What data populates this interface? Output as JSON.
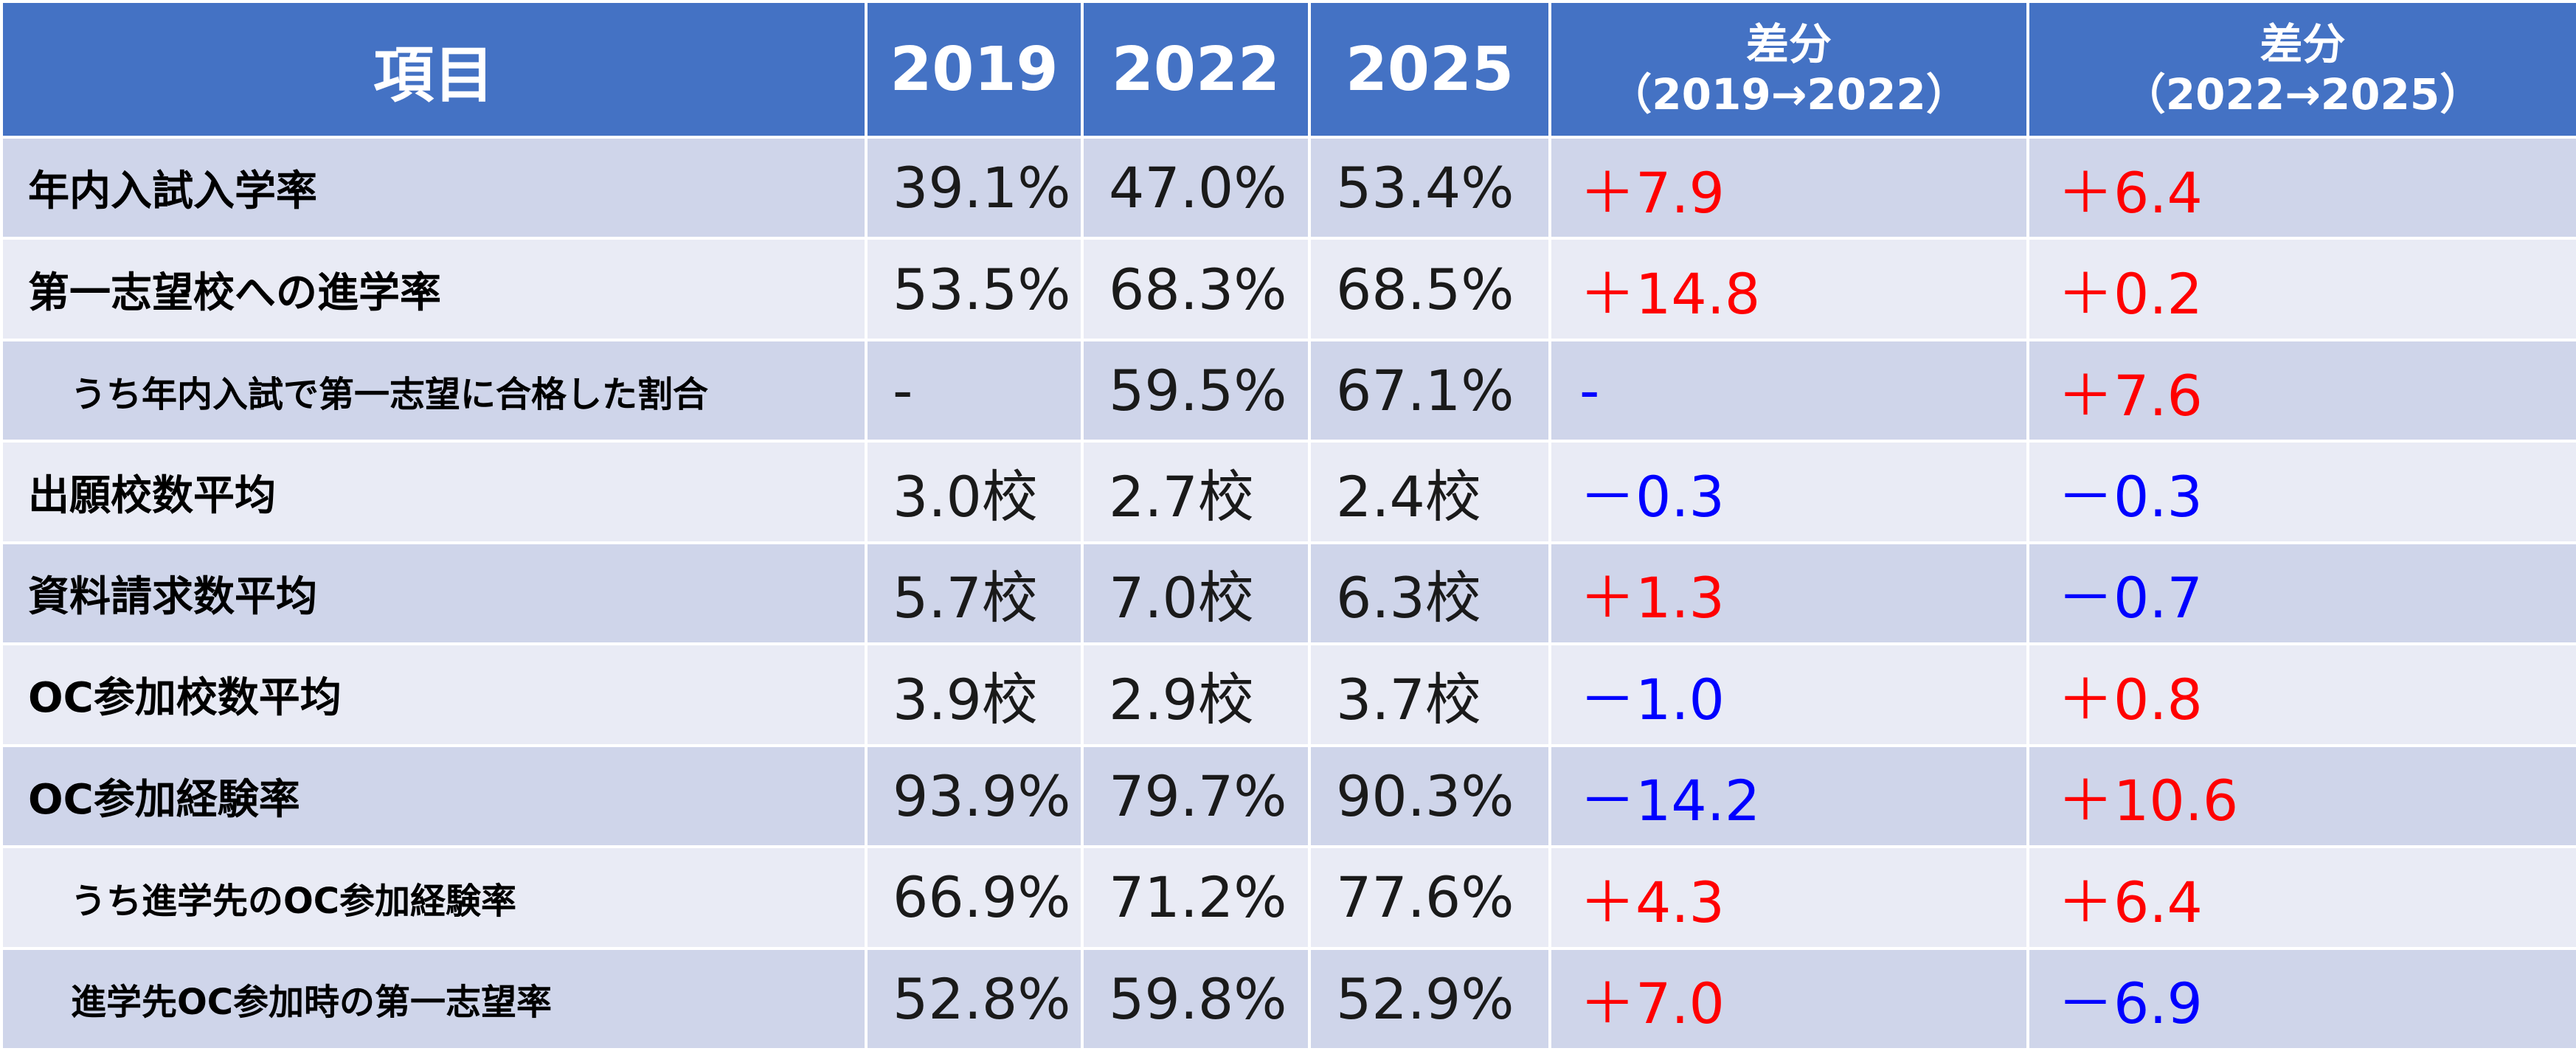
{
  "chart_data": {
    "type": "table",
    "columns": [
      "項目",
      "2019",
      "2022",
      "2025",
      "差分\n（2019→2022）",
      "差分\n（2022→2025）"
    ],
    "header": {
      "item": "項目",
      "y2019": "2019",
      "y2022": "2022",
      "y2025": "2025",
      "diff1_line1": "差分",
      "diff1_line2": "（2019→2022）",
      "diff2_line1": "差分",
      "diff2_line2": "（2022→2025）"
    },
    "rows": [
      {
        "label": "年内入試入学率",
        "sub": false,
        "v2019": "39.1%",
        "v2022": "47.0%",
        "v2025": "53.4%",
        "d1": "＋7.9",
        "d1_sign": "pos",
        "d2": "＋6.4",
        "d2_sign": "pos"
      },
      {
        "label": "第一志望校への進学率",
        "sub": false,
        "v2019": "53.5%",
        "v2022": "68.3%",
        "v2025": "68.5%",
        "d1": "＋14.8",
        "d1_sign": "pos",
        "d2": "＋0.2",
        "d2_sign": "pos"
      },
      {
        "label": "うち年内入試で第一志望に合格した割合",
        "sub": true,
        "v2019": "-",
        "v2022": "59.5%",
        "v2025": "67.1%",
        "d1": "-",
        "d1_sign": "neg",
        "d2": "＋7.6",
        "d2_sign": "pos"
      },
      {
        "label": "出願校数平均",
        "sub": false,
        "v2019": "3.0校",
        "v2022": "2.7校",
        "v2025": "2.4校",
        "d1": "－0.3",
        "d1_sign": "neg",
        "d2": "－0.3",
        "d2_sign": "neg"
      },
      {
        "label": "資料請求数平均",
        "sub": false,
        "v2019": "5.7校",
        "v2022": "7.0校",
        "v2025": "6.3校",
        "d1": "＋1.3",
        "d1_sign": "pos",
        "d2": "－0.7",
        "d2_sign": "neg"
      },
      {
        "label": "OC参加校数平均",
        "sub": false,
        "v2019": "3.9校",
        "v2022": "2.9校",
        "v2025": "3.7校",
        "d1": "－1.0",
        "d1_sign": "neg",
        "d2": "＋0.8",
        "d2_sign": "pos"
      },
      {
        "label": "OC参加経験率",
        "sub": false,
        "v2019": "93.9%",
        "v2022": "79.7%",
        "v2025": "90.3%",
        "d1": "－14.2",
        "d1_sign": "neg",
        "d2": "＋10.6",
        "d2_sign": "pos"
      },
      {
        "label": "うち進学先のOC参加経験率",
        "sub": true,
        "v2019": "66.9%",
        "v2022": "71.2%",
        "v2025": "77.6%",
        "d1": "＋4.3",
        "d1_sign": "pos",
        "d2": "＋6.4",
        "d2_sign": "pos"
      },
      {
        "label": "進学先OC参加時の第一志望率",
        "sub": true,
        "v2019": "52.8%",
        "v2022": "59.8%",
        "v2025": "52.9%",
        "d1": "＋7.0",
        "d1_sign": "pos",
        "d2": "－6.9",
        "d2_sign": "neg"
      }
    ],
    "colors": {
      "header_bg": "#4472c4",
      "row_odd_bg": "#cfd5ea",
      "row_even_bg": "#e9ebf5",
      "positive": "#ff0000",
      "negative": "#0000ff"
    }
  }
}
